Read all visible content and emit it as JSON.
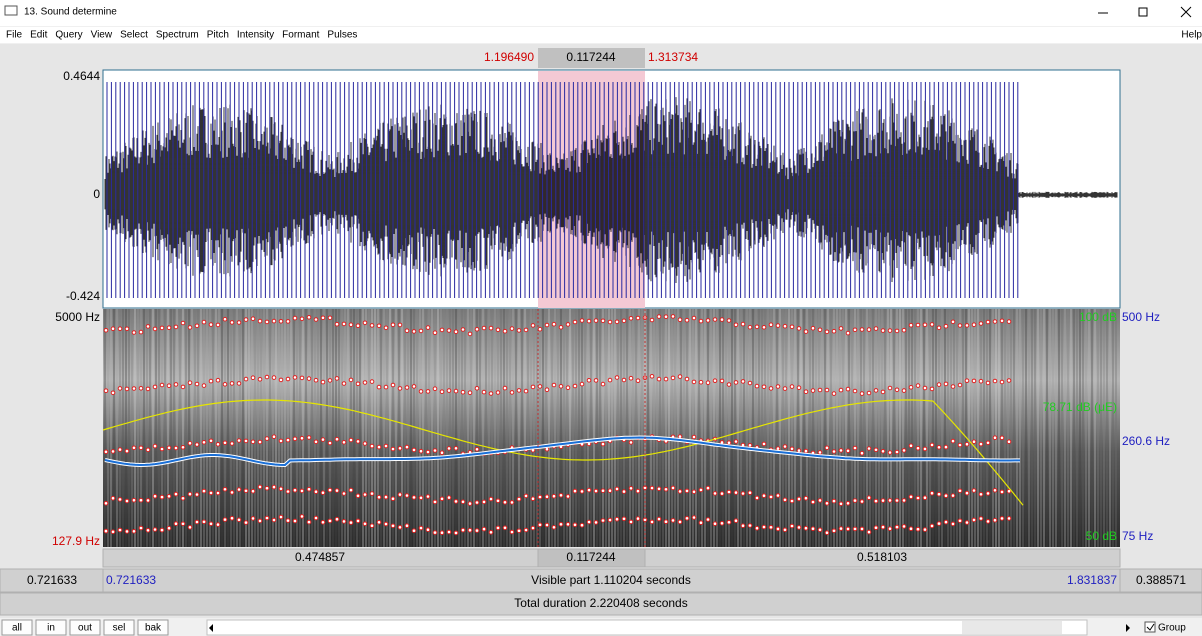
{
  "window": {
    "title": "13. Sound determine"
  },
  "menu": [
    "File",
    "Edit",
    "Query",
    "View",
    "Select",
    "Spectrum",
    "Pitch",
    "Intensity",
    "Formant",
    "Pulses"
  ],
  "help": "Help",
  "selection": {
    "start": "1.196490",
    "duration": "0.117244",
    "end": "1.313734"
  },
  "waveform": {
    "max": "0.4644",
    "zero": "0",
    "min": "-0.424"
  },
  "spectrogram": {
    "freq_top": "5000 Hz",
    "freq_bottom": "127.9 Hz",
    "intensity_top": "100 dB",
    "intensity_mid": "78.71 dB (μE)",
    "intensity_bottom": "50 dB",
    "pitch_top": "500 Hz",
    "pitch_mid": "260.6 Hz",
    "pitch_bottom": "75 Hz"
  },
  "segments": [
    "0.474857",
    "0.117244",
    "0.518103"
  ],
  "visible": {
    "left_outer": "0.721633",
    "left": "0.721633",
    "label": "Visible part 1.110204 seconds",
    "right": "1.831837",
    "right_outer": "0.388571"
  },
  "total": "Total duration 2.220408 seconds",
  "buttons": [
    "all",
    "in",
    "out",
    "sel",
    "bak"
  ],
  "group": "Group"
}
